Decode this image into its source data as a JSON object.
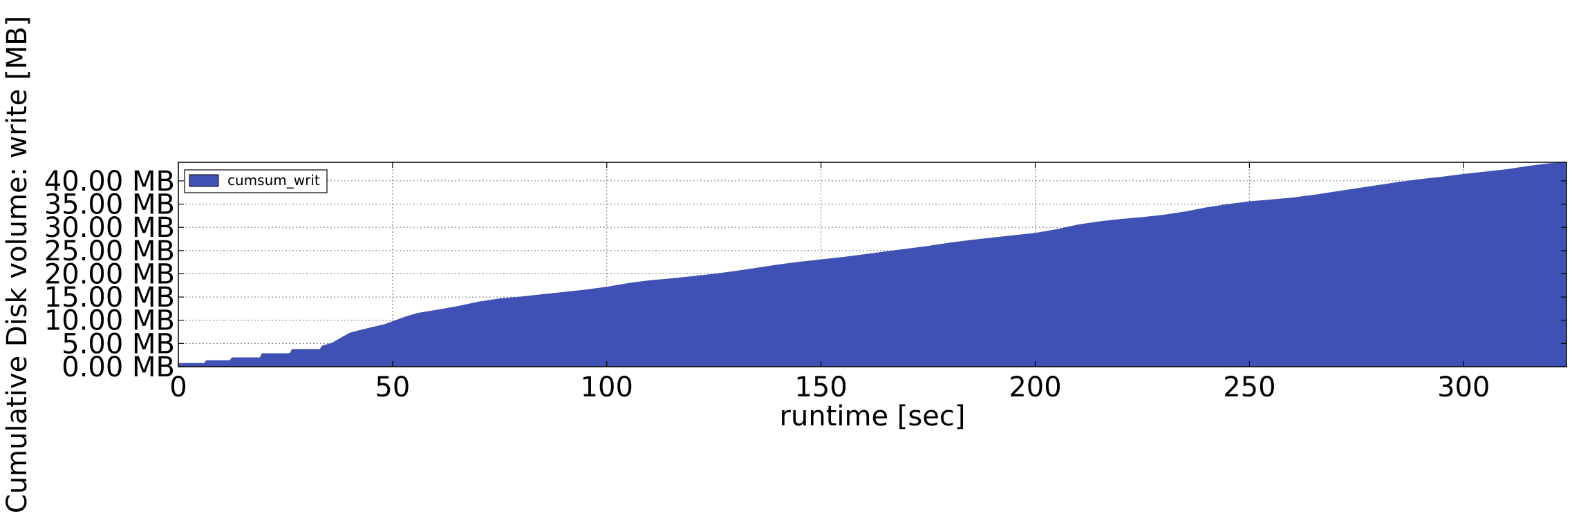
{
  "chart_data": {
    "type": "area",
    "title": "",
    "xlabel": "runtime [sec]",
    "ylabel": "Cumulative Disk volume: write [MB]",
    "xlim": [
      0,
      324
    ],
    "ylim": [
      0,
      44
    ],
    "x_ticks": [
      0,
      50,
      100,
      150,
      200,
      250,
      300
    ],
    "x_tick_labels": [
      "0",
      "50",
      "100",
      "150",
      "200",
      "250",
      "300"
    ],
    "y_ticks": [
      0,
      5,
      10,
      15,
      20,
      25,
      30,
      35,
      40
    ],
    "y_tick_labels": [
      "0.00 MB",
      "5.00 MB",
      "10.00 MB",
      "15.00 MB",
      "20.00 MB",
      "25.00 MB",
      "30.00 MB",
      "35.00 MB",
      "40.00 MB"
    ],
    "grid": true,
    "legend_position": "top-left",
    "series": [
      {
        "name": "cumsum_writ",
        "color": "#3f51b5",
        "x": [
          0,
          6,
          6.5,
          12,
          12.5,
          19,
          19.5,
          26,
          26.5,
          33,
          33.5,
          36,
          38,
          40,
          42,
          45,
          48,
          50,
          53,
          56,
          60,
          65,
          70,
          75,
          80,
          85,
          90,
          95,
          100,
          105,
          110,
          115,
          120,
          125,
          130,
          135,
          140,
          145,
          150,
          155,
          160,
          165,
          170,
          175,
          180,
          185,
          190,
          195,
          200,
          205,
          210,
          215,
          220,
          225,
          230,
          235,
          240,
          245,
          250,
          255,
          260,
          265,
          270,
          275,
          280,
          285,
          290,
          295,
          300,
          305,
          310,
          315,
          320,
          324
        ],
        "y": [
          0.8,
          0.8,
          1.4,
          1.4,
          2.0,
          2.0,
          2.9,
          2.9,
          3.8,
          3.8,
          4.5,
          5.2,
          6.3,
          7.3,
          7.8,
          8.5,
          9.1,
          9.8,
          10.8,
          11.6,
          12.2,
          13.0,
          14.0,
          14.7,
          15.1,
          15.6,
          16.1,
          16.6,
          17.2,
          18.0,
          18.6,
          19.0,
          19.5,
          20.0,
          20.6,
          21.3,
          22.0,
          22.6,
          23.1,
          23.6,
          24.2,
          24.8,
          25.4,
          26.0,
          26.7,
          27.3,
          27.8,
          28.3,
          28.8,
          29.6,
          30.6,
          31.3,
          31.8,
          32.2,
          32.7,
          33.4,
          34.3,
          35.0,
          35.6,
          36.0,
          36.4,
          37.0,
          37.7,
          38.4,
          39.1,
          39.8,
          40.4,
          40.9,
          41.5,
          42.0,
          42.5,
          43.2,
          43.8,
          44.0
        ]
      }
    ]
  }
}
